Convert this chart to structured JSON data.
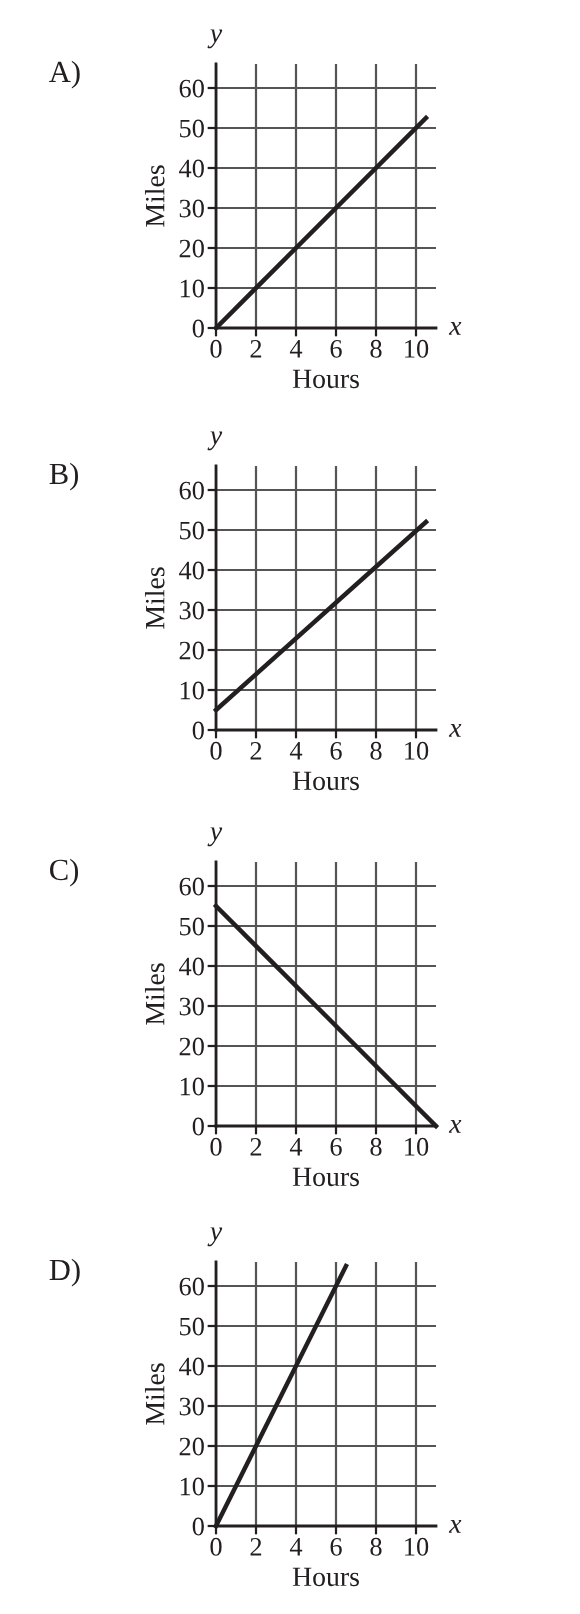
{
  "chart_data": [
    {
      "type": "line",
      "title": "A)",
      "xlabel": "Hours",
      "ylabel": "Miles",
      "annotations": [
        "y",
        "x"
      ],
      "xlim": [
        0,
        11
      ],
      "ylim": [
        0,
        66
      ],
      "xticks": [
        0,
        2,
        4,
        6,
        8,
        10
      ],
      "yticks": [
        0,
        10,
        20,
        30,
        40,
        50,
        60
      ],
      "grid": true,
      "legend": false,
      "marker": "none",
      "line_style": "solid",
      "series": [
        {
          "color": "#231f20",
          "x": [
            0,
            10.5
          ],
          "values": [
            0,
            52.5
          ]
        }
      ]
    },
    {
      "type": "line",
      "title": "B)",
      "xlabel": "Hours",
      "ylabel": "Miles",
      "annotations": [
        "y",
        "x"
      ],
      "xlim": [
        0,
        11
      ],
      "ylim": [
        0,
        66
      ],
      "xticks": [
        0,
        2,
        4,
        6,
        8,
        10
      ],
      "yticks": [
        0,
        10,
        20,
        30,
        40,
        50,
        60
      ],
      "grid": true,
      "legend": false,
      "marker": "none",
      "line_style": "solid",
      "series": [
        {
          "color": "#231f20",
          "x": [
            0,
            10.5
          ],
          "values": [
            5,
            52
          ]
        }
      ]
    },
    {
      "type": "line",
      "title": "C)",
      "xlabel": "Hours",
      "ylabel": "Miles",
      "annotations": [
        "y",
        "x"
      ],
      "xlim": [
        0,
        11
      ],
      "ylim": [
        0,
        66
      ],
      "xticks": [
        0,
        2,
        4,
        6,
        8,
        10
      ],
      "yticks": [
        0,
        10,
        20,
        30,
        40,
        50,
        60
      ],
      "grid": true,
      "legend": false,
      "marker": "none",
      "line_style": "solid",
      "series": [
        {
          "color": "#231f20",
          "x": [
            0,
            11
          ],
          "values": [
            55,
            0
          ]
        }
      ]
    },
    {
      "type": "line",
      "title": "D)",
      "xlabel": "Hours",
      "ylabel": "Miles",
      "annotations": [
        "y",
        "x"
      ],
      "xlim": [
        0,
        11
      ],
      "ylim": [
        0,
        66
      ],
      "xticks": [
        0,
        2,
        4,
        6,
        8,
        10
      ],
      "yticks": [
        0,
        10,
        20,
        30,
        40,
        50,
        60
      ],
      "grid": true,
      "legend": false,
      "marker": "none",
      "line_style": "solid",
      "series": [
        {
          "color": "#231f20",
          "x": [
            0,
            6.5
          ],
          "values": [
            0,
            65
          ]
        }
      ]
    }
  ]
}
